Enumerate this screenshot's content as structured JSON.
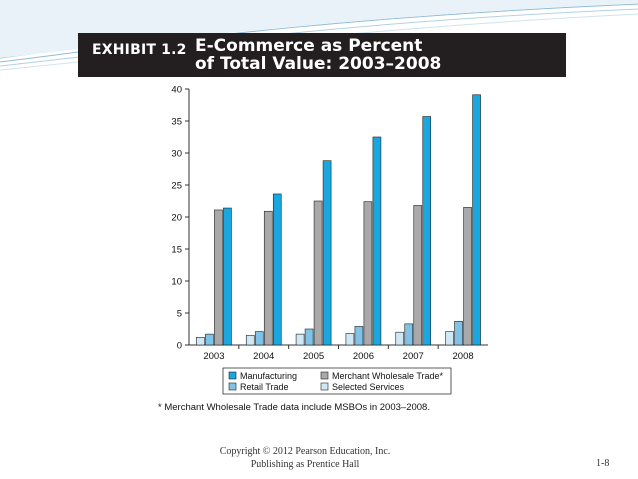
{
  "exhibit": {
    "label": "EXHIBIT 1.2",
    "title_line1": "E-Commerce as Percent",
    "title_line2": "of Total Value: 2003–2008"
  },
  "chart_data": {
    "type": "bar",
    "categories": [
      "2003",
      "2004",
      "2005",
      "2006",
      "2007",
      "2008"
    ],
    "ylim": [
      0,
      40
    ],
    "yticks": [
      0,
      5,
      10,
      15,
      20,
      25,
      30,
      35,
      40
    ],
    "grid": false,
    "legend_position": "bottom",
    "series": [
      {
        "name": "Selected Services",
        "color": "#cfe8f6",
        "values": [
          1.2,
          1.5,
          1.7,
          1.8,
          2.0,
          2.1
        ]
      },
      {
        "name": "Retail Trade",
        "color": "#7fc3e8",
        "values": [
          1.7,
          2.1,
          2.5,
          2.9,
          3.3,
          3.7
        ]
      },
      {
        "name": "Merchant Wholesale Trade*",
        "color": "#a9a9a9",
        "values": [
          21.1,
          20.9,
          22.5,
          22.4,
          21.8,
          21.5
        ]
      },
      {
        "name": "Manufacturing",
        "color": "#1aa6de",
        "values": [
          21.4,
          23.6,
          28.8,
          32.5,
          35.7,
          39.1
        ]
      }
    ],
    "legend_order": [
      "Manufacturing",
      "Merchant Wholesale Trade*",
      "Retail Trade",
      "Selected Services"
    ]
  },
  "footnote": "* Merchant Wholesale Trade data include MSBOs in 2003–2008.",
  "footer": {
    "copyright_line1": "Copyright © 2012 Pearson Education, Inc.",
    "copyright_line2": "Publishing as Prentice Hall",
    "page_number": "1-8"
  }
}
